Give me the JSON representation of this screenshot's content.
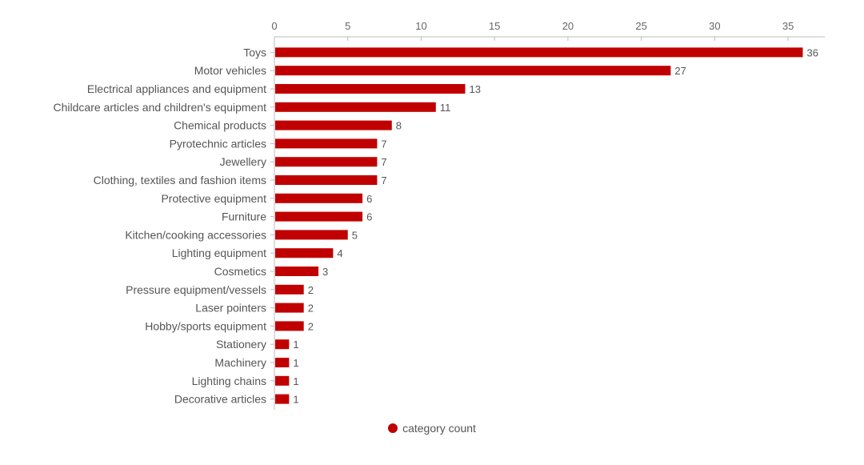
{
  "chart_data": {
    "type": "bar",
    "orientation": "horizontal",
    "categories": [
      "Toys",
      "Motor vehicles",
      "Electrical appliances and equipment",
      "Childcare articles and children's equipment",
      "Chemical products",
      "Pyrotechnic articles",
      "Jewellery",
      "Clothing, textiles and fashion items",
      "Protective equipment",
      "Furniture",
      "Kitchen/cooking accessories",
      "Lighting equipment",
      "Cosmetics",
      "Pressure equipment/vessels",
      "Laser pointers",
      "Hobby/sports equipment",
      "Stationery",
      "Machinery",
      "Lighting chains",
      "Decorative articles"
    ],
    "series": [
      {
        "name": "category count",
        "color": "#c00000",
        "values": [
          36,
          27,
          13,
          11,
          8,
          7,
          7,
          7,
          6,
          6,
          5,
          4,
          3,
          2,
          2,
          2,
          1,
          1,
          1,
          1
        ]
      }
    ],
    "x_ticks": [
      "0",
      "5",
      "10",
      "15",
      "20",
      "25",
      "30",
      "35"
    ],
    "xlim": [
      0,
      37.5
    ],
    "axis_position": "top",
    "grid": false,
    "legend_position": "bottom"
  }
}
